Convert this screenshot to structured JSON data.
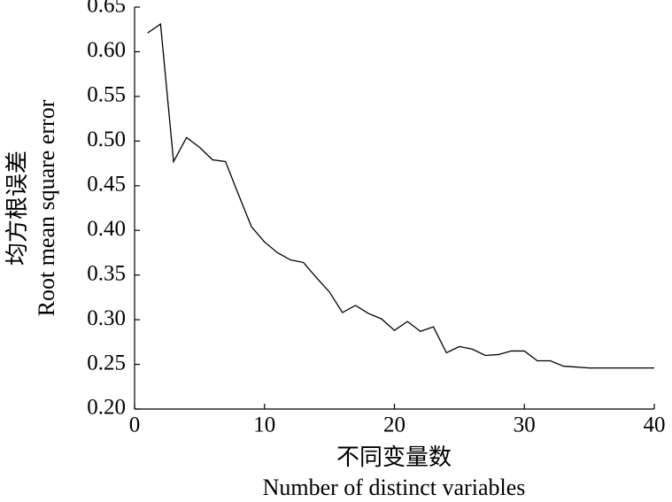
{
  "chart_data": {
    "type": "line",
    "x_label": "不同变量数",
    "x_label_en": "Number of distinct variables",
    "y_label": "均方根误差",
    "y_label_en": "Root mean square error",
    "x": [
      1,
      2,
      3,
      4,
      5,
      6,
      7,
      8,
      9,
      10,
      11,
      12,
      13,
      14,
      15,
      16,
      17,
      18,
      19,
      20,
      21,
      22,
      23,
      24,
      25,
      26,
      27,
      28,
      29,
      30,
      31,
      32,
      33,
      34,
      35,
      36,
      37,
      38,
      39,
      40
    ],
    "series": [
      {
        "color": "#000000",
        "values": [
          0.621,
          0.631,
          0.477,
          0.504,
          0.493,
          0.479,
          0.477,
          0.44,
          0.404,
          0.387,
          0.375,
          0.367,
          0.364,
          0.347,
          0.331,
          0.308,
          0.316,
          0.307,
          0.301,
          0.288,
          0.298,
          0.287,
          0.292,
          0.263,
          0.27,
          0.267,
          0.26,
          0.261,
          0.265,
          0.265,
          0.254,
          0.254,
          0.248,
          0.247,
          0.246,
          0.246,
          0.246,
          0.246,
          0.246,
          0.246
        ]
      }
    ],
    "xlim": [
      0,
      40
    ],
    "xticks": [
      0,
      10,
      20,
      30,
      40
    ],
    "ylim": [
      0.2,
      0.65
    ],
    "yticks": [
      {
        "value": 0.2,
        "label": "0.20"
      },
      {
        "value": 0.25,
        "label": "0.25"
      },
      {
        "value": 0.3,
        "label": "0.30"
      },
      {
        "value": 0.35,
        "label": "0.35"
      },
      {
        "value": 0.4,
        "label": "0.40"
      },
      {
        "value": 0.45,
        "label": "0.45"
      },
      {
        "value": 0.5,
        "label": "0.50"
      },
      {
        "value": 0.55,
        "label": "0.55"
      },
      {
        "value": 0.6,
        "label": "0.60"
      },
      {
        "value": 0.65,
        "label": "0.65"
      }
    ],
    "grid": false
  }
}
